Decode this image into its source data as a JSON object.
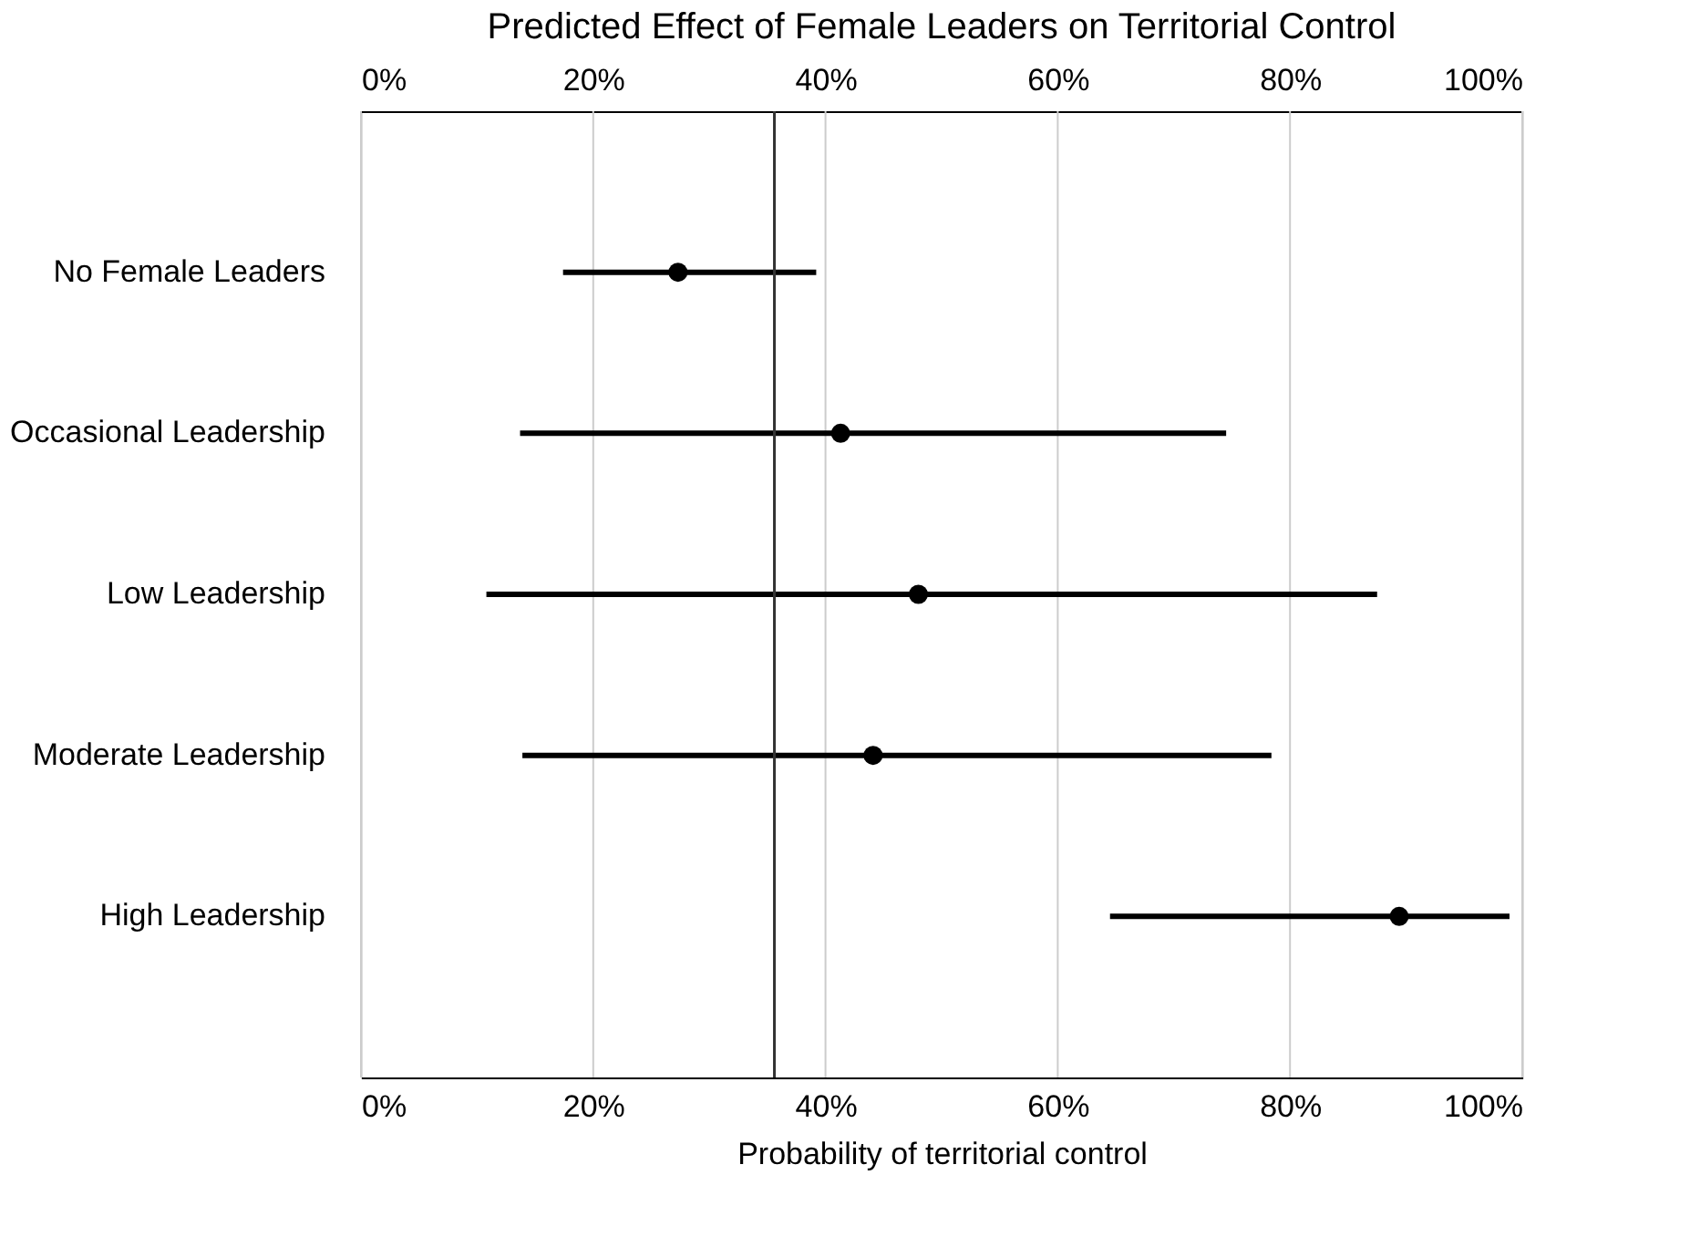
{
  "chart_data": {
    "type": "scatter",
    "orientation": "horizontal",
    "title": "Predicted Effect of Female Leaders on Territorial Control",
    "xlabel": "Probability of territorial control",
    "categories": [
      "No Female Leaders",
      "Occasional Leadership",
      "Low Leadership",
      "Moderate Leadership",
      "High Leadership"
    ],
    "values": [
      27.3,
      41.3,
      48.0,
      44.1,
      89.4
    ],
    "errors": [
      [
        17.4,
        39.2
      ],
      [
        13.7,
        74.5
      ],
      [
        10.8,
        87.5
      ],
      [
        13.9,
        78.4
      ],
      [
        64.5,
        98.9
      ]
    ],
    "color": "#000000",
    "marker": "circle",
    "xlim": [
      0,
      100
    ],
    "xticks": [
      {
        "value": 0,
        "label": "0%"
      },
      {
        "value": 20,
        "label": "20%"
      },
      {
        "value": 40,
        "label": "40%"
      },
      {
        "value": 60,
        "label": "60%"
      },
      {
        "value": 80,
        "label": "80%"
      },
      {
        "value": 100,
        "label": "100%"
      }
    ],
    "x2lim": [
      0,
      100
    ],
    "x2ticks": [
      {
        "value": 0,
        "label": "0%"
      },
      {
        "value": 20,
        "label": "20%"
      },
      {
        "value": 40,
        "label": "40%"
      },
      {
        "value": 60,
        "label": "60%"
      },
      {
        "value": 80,
        "label": "80%"
      },
      {
        "value": 100,
        "label": "100%"
      }
    ],
    "ref_lines": [
      {
        "axis": "x",
        "value": 35.6,
        "color": "#333333"
      }
    ],
    "grid": "x"
  }
}
